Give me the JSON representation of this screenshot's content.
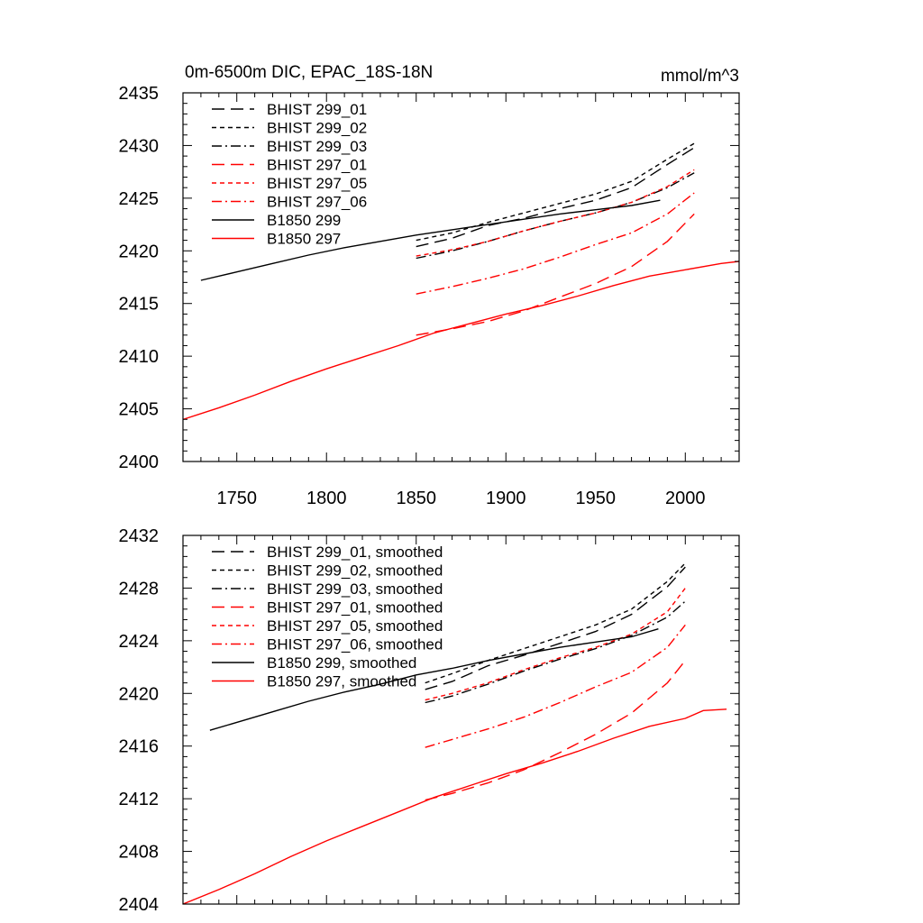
{
  "chart_data": [
    {
      "type": "line",
      "title": "0m-6500m DIC, EPAC_18S-18N",
      "units": "mmol/m^3",
      "xlim": [
        1720,
        2030
      ],
      "ylim": [
        2400,
        2435
      ],
      "x_ticks": [
        1750,
        1800,
        1850,
        1900,
        1950,
        2000
      ],
      "y_ticks": [
        2400,
        2405,
        2410,
        2415,
        2420,
        2425,
        2430,
        2435
      ],
      "legend_position": "top-left",
      "series": [
        {
          "name": "BHIST 299_01",
          "color": "#000000",
          "dash": "long-dash",
          "x": [
            1850,
            1870,
            1890,
            1910,
            1930,
            1950,
            1970,
            1990,
            2005
          ],
          "y": [
            2420.4,
            2421.2,
            2422.4,
            2423.1,
            2424.0,
            2424.8,
            2426.0,
            2428.2,
            2429.8
          ]
        },
        {
          "name": "BHIST 299_02",
          "color": "#000000",
          "dash": "short-dash",
          "x": [
            1850,
            1870,
            1890,
            1910,
            1930,
            1950,
            1970,
            1990,
            2005
          ],
          "y": [
            2421.0,
            2421.7,
            2422.7,
            2423.6,
            2424.5,
            2425.4,
            2426.6,
            2428.7,
            2430.2
          ]
        },
        {
          "name": "BHIST 299_03",
          "color": "#000000",
          "dash": "dash-dot",
          "x": [
            1850,
            1870,
            1890,
            1910,
            1930,
            1950,
            1970,
            1990,
            2005
          ],
          "y": [
            2419.3,
            2420.0,
            2420.9,
            2421.9,
            2422.8,
            2423.6,
            2424.6,
            2426.0,
            2427.4
          ]
        },
        {
          "name": "BHIST 297_01",
          "color": "#ff0000",
          "dash": "long-dash",
          "x": [
            1850,
            1870,
            1890,
            1910,
            1930,
            1950,
            1970,
            1990,
            2005
          ],
          "y": [
            2412.0,
            2412.6,
            2413.3,
            2414.3,
            2415.6,
            2416.9,
            2418.5,
            2420.9,
            2423.5
          ]
        },
        {
          "name": "BHIST 297_05",
          "color": "#ff0000",
          "dash": "short-dash",
          "x": [
            1850,
            1870,
            1890,
            1910,
            1930,
            1950,
            1970,
            1990,
            2005
          ],
          "y": [
            2419.5,
            2420.1,
            2420.9,
            2421.9,
            2422.8,
            2423.6,
            2424.6,
            2426.1,
            2427.7
          ]
        },
        {
          "name": "BHIST 297_06",
          "color": "#ff0000",
          "dash": "dash-dot",
          "x": [
            1850,
            1870,
            1890,
            1910,
            1930,
            1950,
            1970,
            1990,
            2005
          ],
          "y": [
            2415.9,
            2416.6,
            2417.4,
            2418.3,
            2419.4,
            2420.6,
            2421.7,
            2423.5,
            2425.5
          ]
        },
        {
          "name": "B1850 299",
          "color": "#000000",
          "dash": "solid",
          "x": [
            1730,
            1750,
            1770,
            1790,
            1810,
            1830,
            1850,
            1870,
            1890,
            1910,
            1930,
            1950,
            1970,
            1986
          ],
          "y": [
            2417.2,
            2418.0,
            2418.8,
            2419.6,
            2420.3,
            2420.9,
            2421.5,
            2422.0,
            2422.5,
            2423.0,
            2423.5,
            2423.9,
            2424.3,
            2424.8
          ]
        },
        {
          "name": "B1850 297",
          "color": "#ff0000",
          "dash": "solid",
          "x": [
            1720,
            1740,
            1760,
            1780,
            1800,
            1820,
            1840,
            1860,
            1880,
            1900,
            1920,
            1940,
            1960,
            1980,
            2000,
            2020,
            2030
          ],
          "y": [
            2404.0,
            2405.1,
            2406.3,
            2407.6,
            2408.8,
            2409.9,
            2411.0,
            2412.2,
            2413.1,
            2414.0,
            2414.8,
            2415.7,
            2416.7,
            2417.6,
            2418.2,
            2418.8,
            2419.0
          ]
        }
      ]
    },
    {
      "type": "line",
      "xlim": [
        1720,
        2030
      ],
      "ylim": [
        2404,
        2432
      ],
      "y_ticks": [
        2404,
        2408,
        2412,
        2416,
        2420,
        2424,
        2428,
        2432
      ],
      "legend_position": "top-left",
      "series": [
        {
          "name": "BHIST 299_01, smoothed",
          "color": "#000000",
          "dash": "long-dash",
          "x": [
            1855,
            1870,
            1890,
            1910,
            1930,
            1950,
            1970,
            1990,
            2000
          ],
          "y": [
            2420.3,
            2420.9,
            2422.1,
            2422.9,
            2423.8,
            2424.7,
            2426.0,
            2428.1,
            2429.6
          ]
        },
        {
          "name": "BHIST 299_02, smoothed",
          "color": "#000000",
          "dash": "short-dash",
          "x": [
            1855,
            1870,
            1890,
            1910,
            1930,
            1950,
            1970,
            1990,
            2000
          ],
          "y": [
            2420.8,
            2421.5,
            2422.5,
            2423.4,
            2424.3,
            2425.2,
            2426.4,
            2428.5,
            2429.9
          ]
        },
        {
          "name": "BHIST 299_03, smoothed",
          "color": "#000000",
          "dash": "dash-dot",
          "x": [
            1855,
            1870,
            1890,
            1910,
            1930,
            1950,
            1970,
            1990,
            2000
          ],
          "y": [
            2419.3,
            2419.8,
            2420.7,
            2421.7,
            2422.6,
            2423.4,
            2424.4,
            2425.8,
            2427.0
          ]
        },
        {
          "name": "BHIST 297_01, smoothed",
          "color": "#ff0000",
          "dash": "long-dash",
          "x": [
            1855,
            1870,
            1890,
            1910,
            1930,
            1950,
            1970,
            1990,
            2000
          ],
          "y": [
            2411.9,
            2412.4,
            2413.2,
            2414.2,
            2415.5,
            2416.9,
            2418.5,
            2420.8,
            2422.5
          ]
        },
        {
          "name": "BHIST 297_05, smoothed",
          "color": "#ff0000",
          "dash": "short-dash",
          "x": [
            1855,
            1870,
            1890,
            1910,
            1930,
            1950,
            1970,
            1990,
            2000
          ],
          "y": [
            2419.5,
            2420.0,
            2420.8,
            2421.8,
            2422.7,
            2423.5,
            2424.5,
            2426.2,
            2428.0
          ]
        },
        {
          "name": "BHIST 297_06, smoothed",
          "color": "#ff0000",
          "dash": "dash-dot",
          "x": [
            1855,
            1870,
            1890,
            1910,
            1930,
            1950,
            1970,
            1990,
            2000
          ],
          "y": [
            2415.9,
            2416.5,
            2417.3,
            2418.2,
            2419.3,
            2420.5,
            2421.6,
            2423.5,
            2425.2
          ]
        },
        {
          "name": "B1850 299, smoothed",
          "color": "#000000",
          "dash": "solid",
          "x": [
            1735,
            1750,
            1770,
            1790,
            1810,
            1830,
            1850,
            1870,
            1890,
            1910,
            1930,
            1950,
            1970,
            1985
          ],
          "y": [
            2417.2,
            2417.8,
            2418.6,
            2419.4,
            2420.1,
            2420.7,
            2421.4,
            2421.9,
            2422.5,
            2423.0,
            2423.5,
            2423.9,
            2424.3,
            2424.9
          ]
        },
        {
          "name": "B1850 297, smoothed",
          "color": "#ff0000",
          "dash": "solid",
          "x": [
            1720,
            1740,
            1760,
            1780,
            1800,
            1820,
            1840,
            1860,
            1880,
            1900,
            1920,
            1940,
            1960,
            1980,
            2000,
            2010,
            2023
          ],
          "y": [
            2404.0,
            2405.1,
            2406.3,
            2407.6,
            2408.8,
            2409.9,
            2411.0,
            2412.1,
            2413.0,
            2413.9,
            2414.7,
            2415.6,
            2416.6,
            2417.5,
            2418.1,
            2418.7,
            2418.8
          ]
        }
      ]
    }
  ]
}
